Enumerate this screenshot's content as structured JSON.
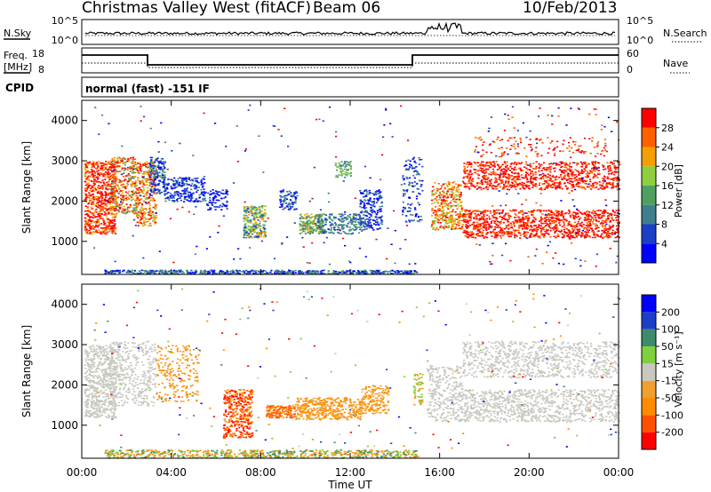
{
  "header": {
    "title": "Christmas Valley West (fitACF)",
    "beam": "Beam 06",
    "date": "10/Feb/2013"
  },
  "summary": {
    "nsky_label": "N.Sky",
    "nsky_ticks": [
      "10^5",
      "10^0"
    ],
    "nsearch_label": "N.Search",
    "nsearch_ticks": [
      "10^5",
      "10^0"
    ],
    "freq_label_1": "Freq.",
    "freq_label_2": "[MHz]",
    "freq_ticks": [
      "18",
      "8"
    ],
    "nave_label": "Nave",
    "nave_ticks": [
      "60",
      "0"
    ],
    "cpid_label": "CPID",
    "cpid_text": "normal (fast) -151 IF"
  },
  "colors": {
    "power": [
      "#0000ff",
      "#1c3fc8",
      "#3f7f8f",
      "#4fa060",
      "#8fcf3f",
      "#f5a000",
      "#ff6000",
      "#ff0000"
    ],
    "velocity": [
      "#ff0000",
      "#ff5000",
      "#ff8c00",
      "#f0a030",
      "#c8c8c0",
      "#7fcf3f",
      "#3c8c6c",
      "#1c3fc8",
      "#0000ff"
    ]
  },
  "chart_data": [
    {
      "type": "heatmap",
      "name": "power",
      "ylabel": "Slant Range [km]",
      "ylim": [
        180,
        4500
      ],
      "yticks": [
        "1000",
        "2000",
        "3000",
        "4000"
      ],
      "xlim_hours": [
        0,
        24
      ],
      "colorbar_label": "Power [dB]",
      "colorbar_ticks": [
        "28",
        "24",
        "20",
        "16",
        "12",
        "8",
        "4"
      ]
    },
    {
      "type": "heatmap",
      "name": "velocity",
      "ylabel": "Slant Range [km]",
      "ylim": [
        180,
        4500
      ],
      "yticks": [
        "1000",
        "2000",
        "3000",
        "4000"
      ],
      "xlim_hours": [
        0,
        24
      ],
      "xticks": [
        "00:00",
        "04:00",
        "08:00",
        "12:00",
        "16:00",
        "20:00",
        "00:00"
      ],
      "xlabel": "Time UT",
      "colorbar_label": "Velocity [m s⁻¹]",
      "colorbar_ticks": [
        "200",
        "100",
        "50",
        "15",
        "-15",
        "-50",
        "-100",
        "-200"
      ]
    }
  ]
}
